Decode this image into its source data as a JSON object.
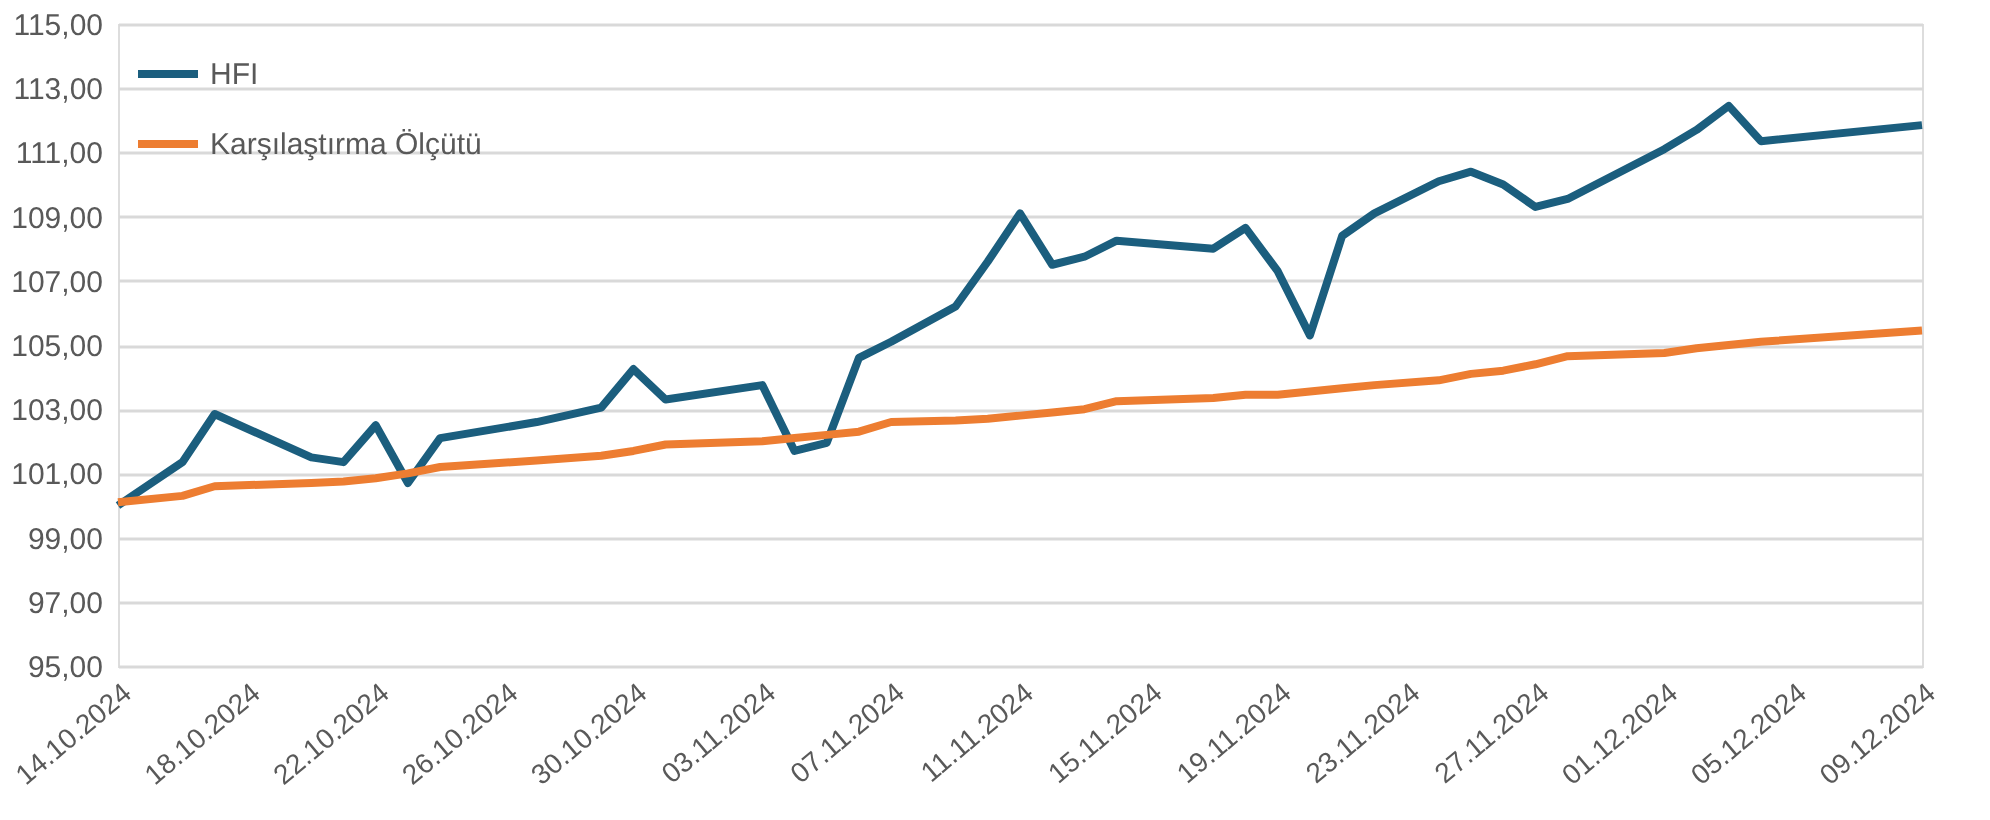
{
  "chart_data": {
    "type": "line",
    "x": [
      "2024-10-14",
      "2024-10-16",
      "2024-10-17",
      "2024-10-20",
      "2024-10-21",
      "2024-10-22",
      "2024-10-23",
      "2024-10-24",
      "2024-10-27",
      "2024-10-29",
      "2024-10-30",
      "2024-10-31",
      "2024-11-03",
      "2024-11-04",
      "2024-11-05",
      "2024-11-06",
      "2024-11-07",
      "2024-11-09",
      "2024-11-10",
      "2024-11-11",
      "2024-11-12",
      "2024-11-13",
      "2024-11-14",
      "2024-11-17",
      "2024-11-18",
      "2024-11-19",
      "2024-11-20",
      "2024-11-21",
      "2024-11-22",
      "2024-11-24",
      "2024-11-25",
      "2024-11-26",
      "2024-11-27",
      "2024-11-28",
      "2024-12-01",
      "2024-12-02",
      "2024-12-03",
      "2024-12-04",
      "2024-12-09"
    ],
    "series": [
      {
        "name": "HFI",
        "color": "#1b5e7e",
        "values": [
          100.0,
          101.35,
          102.85,
          101.5,
          101.35,
          102.5,
          100.7,
          102.1,
          102.6,
          103.05,
          104.25,
          103.3,
          103.75,
          101.7,
          101.95,
          104.6,
          105.1,
          106.2,
          107.6,
          109.1,
          107.5,
          107.75,
          108.25,
          108.0,
          108.65,
          107.3,
          105.3,
          108.4,
          109.1,
          110.1,
          110.4,
          110.0,
          109.3,
          109.55,
          111.1,
          111.7,
          112.45,
          111.35,
          111.85
        ]
      },
      {
        "name": "Karşılaştırma Ölçütü",
        "color": "#ed7d31",
        "values": [
          100.1,
          100.3,
          100.6,
          100.7,
          100.75,
          100.85,
          101.0,
          101.2,
          101.4,
          101.55,
          101.7,
          101.9,
          102.0,
          102.1,
          102.2,
          102.3,
          102.6,
          102.65,
          102.7,
          102.8,
          102.9,
          103.0,
          103.25,
          103.35,
          103.45,
          103.45,
          103.55,
          103.65,
          103.75,
          103.9,
          104.1,
          104.2,
          104.4,
          104.65,
          104.75,
          104.9,
          105.0,
          105.1,
          105.45
        ]
      }
    ],
    "xlim": [
      "2024-10-14",
      "2024-12-09"
    ],
    "xticks": [
      {
        "value": "2024-10-14",
        "label": "14.10.2024"
      },
      {
        "value": "2024-10-18",
        "label": "18.10.2024"
      },
      {
        "value": "2024-10-22",
        "label": "22.10.2024"
      },
      {
        "value": "2024-10-26",
        "label": "26.10.2024"
      },
      {
        "value": "2024-10-30",
        "label": "30.10.2024"
      },
      {
        "value": "2024-11-03",
        "label": "03.11.2024"
      },
      {
        "value": "2024-11-07",
        "label": "07.11.2024"
      },
      {
        "value": "2024-11-11",
        "label": "11.11.2024"
      },
      {
        "value": "2024-11-15",
        "label": "15.11.2024"
      },
      {
        "value": "2024-11-19",
        "label": "19.11.2024"
      },
      {
        "value": "2024-11-23",
        "label": "23.11.2024"
      },
      {
        "value": "2024-11-27",
        "label": "27.11.2024"
      },
      {
        "value": "2024-12-01",
        "label": "01.12.2024"
      },
      {
        "value": "2024-12-05",
        "label": "05.12.2024"
      },
      {
        "value": "2024-12-09",
        "label": "09.12.2024"
      }
    ],
    "ylim": [
      95,
      115
    ],
    "yticks": [
      {
        "value": 95,
        "label": "95,00"
      },
      {
        "value": 97,
        "label": "97,00"
      },
      {
        "value": 99,
        "label": "99,00"
      },
      {
        "value": 101,
        "label": "101,00"
      },
      {
        "value": 103,
        "label": "103,00"
      },
      {
        "value": 105,
        "label": "105,00"
      },
      {
        "value": 107,
        "label": "107,00"
      },
      {
        "value": 109,
        "label": "109,00"
      },
      {
        "value": 111,
        "label": "111,00"
      },
      {
        "value": 113,
        "label": "113,00"
      },
      {
        "value": 115,
        "label": "115,00"
      }
    ],
    "grid": "y",
    "legend": "top left",
    "marker": "none",
    "line_style": "solid"
  }
}
